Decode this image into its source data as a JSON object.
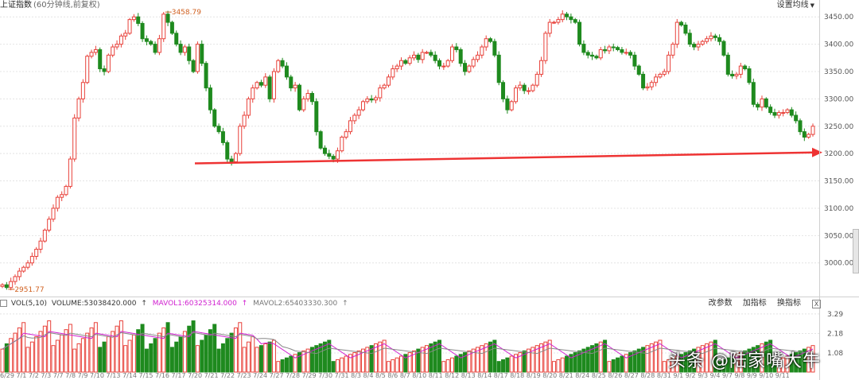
{
  "header": {
    "title": "上证指数",
    "subtitle": "(60分钟线,前复权)",
    "settings_label": "设置均线"
  },
  "price_axis": {
    "ticks": [
      "3450.00",
      "3400.00",
      "3350.00",
      "3300.00",
      "3250.00",
      "3200.00",
      "3150.00",
      "3100.00",
      "3050.00",
      "3000.00"
    ]
  },
  "annotations": {
    "high_label": "3458.79",
    "low_label": "2951.77"
  },
  "volume_panel": {
    "indicator": "VOL(5,10)",
    "volume_text": "VOLUME:53038420.000",
    "mavol1_text": "MAVOL1:60325314.000",
    "mavol2_text": "MAVOL2:65403330.300",
    "tools": [
      "改参数",
      "加指标",
      "换指标"
    ],
    "close_label": "X",
    "ticks": [
      "3.29",
      "2.18",
      "1.08"
    ]
  },
  "x_axis_labels": "6/29 7/1  7/2  7/3   7/7  7/8  7/9  7/10 7/13 7/14 7/15 7/16 7/17 7/20 7/21 7/22 7/23 7/24 7/27 7/28 7/29 7/30 7/31 8/3  8/4  8/5  8/6  8/7  8/10 8/11 8/12 8/13 8/14 8/17 8/18 8/19 8/20 8/21 8/24 8/25 8/26 8/27 8/28 8/31 9/1  9/2  9/3  9/4  9/7  9/8  9/9  9/10 9/11",
  "watermark": "头条 @陆家嘴大牛",
  "colors": {
    "up": "#e8413a",
    "down": "#1e8a1e",
    "arrow": "#ee3333",
    "mavol1": "#d020d0",
    "mavol2": "#888888"
  },
  "chart_data": {
    "type": "candlestick",
    "price_range": [
      2940,
      3475
    ],
    "trend_arrow": {
      "from_value": 3182,
      "to_value": 3202
    },
    "closes": [
      2960,
      2955,
      2966,
      2975,
      2985,
      2992,
      3000,
      3012,
      3025,
      3040,
      3060,
      3080,
      3100,
      3120,
      3125,
      3140,
      3190,
      3265,
      3300,
      3330,
      3378,
      3385,
      3390,
      3355,
      3350,
      3380,
      3395,
      3400,
      3415,
      3420,
      3445,
      3450,
      3438,
      3410,
      3405,
      3400,
      3385,
      3410,
      3455,
      3440,
      3420,
      3400,
      3385,
      3395,
      3370,
      3350,
      3400,
      3365,
      3320,
      3280,
      3250,
      3240,
      3220,
      3190,
      3185,
      3200,
      3250,
      3270,
      3300,
      3320,
      3330,
      3325,
      3340,
      3300,
      3350,
      3370,
      3360,
      3340,
      3320,
      3325,
      3280,
      3300,
      3310,
      3295,
      3240,
      3210,
      3200,
      3195,
      3190,
      3205,
      3230,
      3240,
      3260,
      3270,
      3280,
      3295,
      3300,
      3298,
      3302,
      3320,
      3325,
      3340,
      3355,
      3360,
      3370,
      3365,
      3375,
      3380,
      3372,
      3385,
      3385,
      3380,
      3370,
      3360,
      3360,
      3370,
      3395,
      3390,
      3365,
      3350,
      3360,
      3372,
      3380,
      3395,
      3410,
      3405,
      3380,
      3330,
      3300,
      3280,
      3295,
      3320,
      3325,
      3315,
      3315,
      3325,
      3345,
      3370,
      3420,
      3440,
      3440,
      3445,
      3455,
      3450,
      3445,
      3440,
      3400,
      3385,
      3380,
      3378,
      3375,
      3390,
      3388,
      3395,
      3394,
      3390,
      3385,
      3385,
      3380,
      3360,
      3345,
      3320,
      3322,
      3330,
      3340,
      3345,
      3350,
      3380,
      3400,
      3440,
      3435,
      3420,
      3400,
      3395,
      3400,
      3405,
      3410,
      3415,
      3412,
      3405,
      3380,
      3345,
      3342,
      3345,
      3360,
      3355,
      3330,
      3290,
      3285,
      3300,
      3285,
      3275,
      3270,
      3275,
      3275,
      3280,
      3270,
      3260,
      3240,
      3230,
      3235,
      3250
    ]
  }
}
